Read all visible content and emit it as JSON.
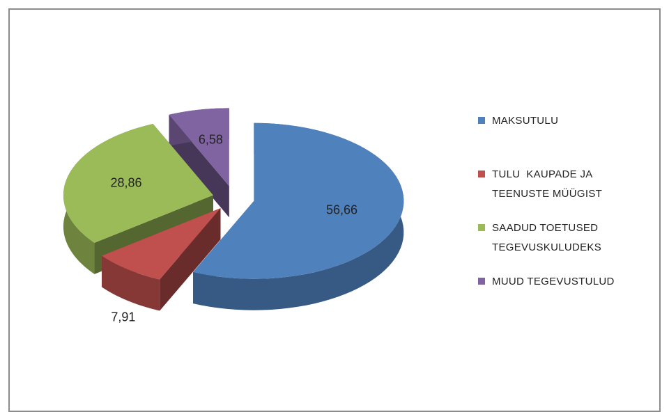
{
  "chart_data": {
    "type": "pie",
    "categories": [
      "MAKSUTULU",
      "TULU  KAUPADE JA TEENUSTE MÜÜGIST",
      "SAADUD TOETUSED TEGEVUSKULUDEKS",
      "MUUD TEGEVUSTULUD"
    ],
    "values": [
      56.66,
      7.91,
      28.86,
      6.58
    ],
    "value_labels": [
      "56,66",
      "7,91",
      "28,86",
      "6,58"
    ],
    "colors": [
      "#4f81bd",
      "#c0504d",
      "#9bbb59",
      "#8064a2"
    ],
    "legend": "right",
    "exploded": true,
    "three_d": true
  }
}
